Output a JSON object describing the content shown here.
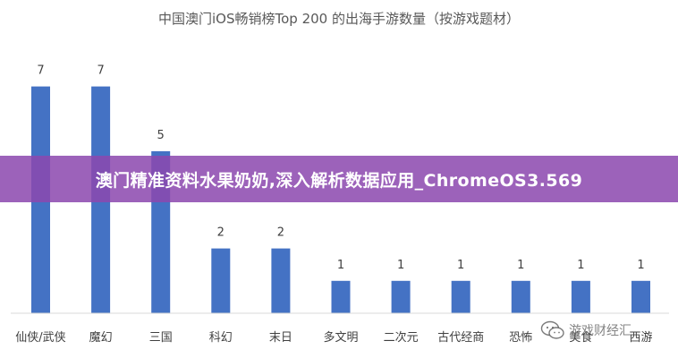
{
  "chart_data": {
    "type": "bar",
    "title": "中国澳门iOS畅销榜Top 200 的出海手游数量（按游戏题材）",
    "categories": [
      "仙侠/武侠",
      "魔幻",
      "三国",
      "科幻",
      "末日",
      "多文明",
      "二次元",
      "古代经商",
      "恐怖",
      "美食",
      "西游"
    ],
    "values": [
      7,
      7,
      5,
      2,
      2,
      1,
      1,
      1,
      1,
      1,
      1
    ],
    "data_labels": [
      "7",
      "7",
      "5",
      "2",
      "2",
      "1",
      "1",
      "1",
      "1",
      "1",
      "1"
    ],
    "ylim": [
      0,
      8
    ],
    "grid": false,
    "legend": "none",
    "bar_color": "#4472c4"
  },
  "banner": {
    "text": "澳门精准资料水果奶奶,深入解析数据应用_ChromeOS3.569",
    "bg_color": "#8c48af"
  },
  "watermark": {
    "text": "游戏财经汇",
    "icon": "wechat-icon"
  }
}
